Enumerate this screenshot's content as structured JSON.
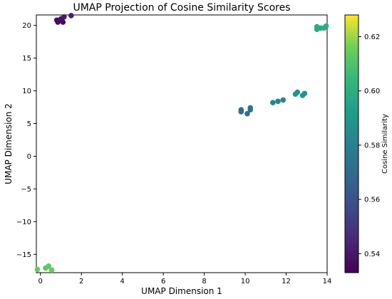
{
  "chart_data": {
    "type": "scatter",
    "title": "UMAP Projection of Cosine Similarity Scores",
    "xlabel": "UMAP Dimension 1",
    "ylabel": "UMAP Dimension 2",
    "xlim": [
      -0.2,
      14.0
    ],
    "ylim": [
      -17.8,
      21.6
    ],
    "xticks": [
      0,
      2,
      4,
      6,
      8,
      10,
      12,
      14
    ],
    "yticks": [
      -15,
      -10,
      -5,
      0,
      5,
      10,
      15,
      20
    ],
    "grid": false,
    "colormap": "viridis",
    "colorbar": {
      "label": "Cosine Similarity",
      "range": [
        0.533,
        0.628
      ],
      "ticks": [
        0.54,
        0.56,
        0.58,
        0.6,
        0.62
      ]
    },
    "points": [
      {
        "x": 0.8,
        "y": 20.8,
        "c": 0.536
      },
      {
        "x": 0.85,
        "y": 20.5,
        "c": 0.536
      },
      {
        "x": 1.0,
        "y": 21.0,
        "c": 0.538
      },
      {
        "x": 1.1,
        "y": 20.5,
        "c": 0.537
      },
      {
        "x": 1.15,
        "y": 21.3,
        "c": 0.54
      },
      {
        "x": 1.5,
        "y": 21.5,
        "c": 0.542
      },
      {
        "x": 9.8,
        "y": 6.8,
        "c": 0.571
      },
      {
        "x": 9.8,
        "y": 7.1,
        "c": 0.572
      },
      {
        "x": 10.1,
        "y": 6.5,
        "c": 0.571
      },
      {
        "x": 10.25,
        "y": 7.1,
        "c": 0.573
      },
      {
        "x": 10.25,
        "y": 7.4,
        "c": 0.574
      },
      {
        "x": 11.35,
        "y": 8.2,
        "c": 0.581
      },
      {
        "x": 11.6,
        "y": 8.4,
        "c": 0.582
      },
      {
        "x": 11.85,
        "y": 8.6,
        "c": 0.583
      },
      {
        "x": 12.45,
        "y": 9.5,
        "c": 0.588
      },
      {
        "x": 12.55,
        "y": 9.8,
        "c": 0.589
      },
      {
        "x": 12.8,
        "y": 9.3,
        "c": 0.588
      },
      {
        "x": 12.9,
        "y": 9.6,
        "c": 0.589
      },
      {
        "x": 13.5,
        "y": 19.4,
        "c": 0.598
      },
      {
        "x": 13.5,
        "y": 19.8,
        "c": 0.599
      },
      {
        "x": 13.7,
        "y": 19.6,
        "c": 0.599
      },
      {
        "x": 13.85,
        "y": 19.6,
        "c": 0.6
      },
      {
        "x": 13.95,
        "y": 19.9,
        "c": 0.6
      },
      {
        "x": -0.15,
        "y": -17.3,
        "c": 0.614
      },
      {
        "x": 0.25,
        "y": -17.1,
        "c": 0.613
      },
      {
        "x": 0.4,
        "y": -16.8,
        "c": 0.613
      },
      {
        "x": 0.55,
        "y": -17.4,
        "c": 0.614
      }
    ]
  }
}
